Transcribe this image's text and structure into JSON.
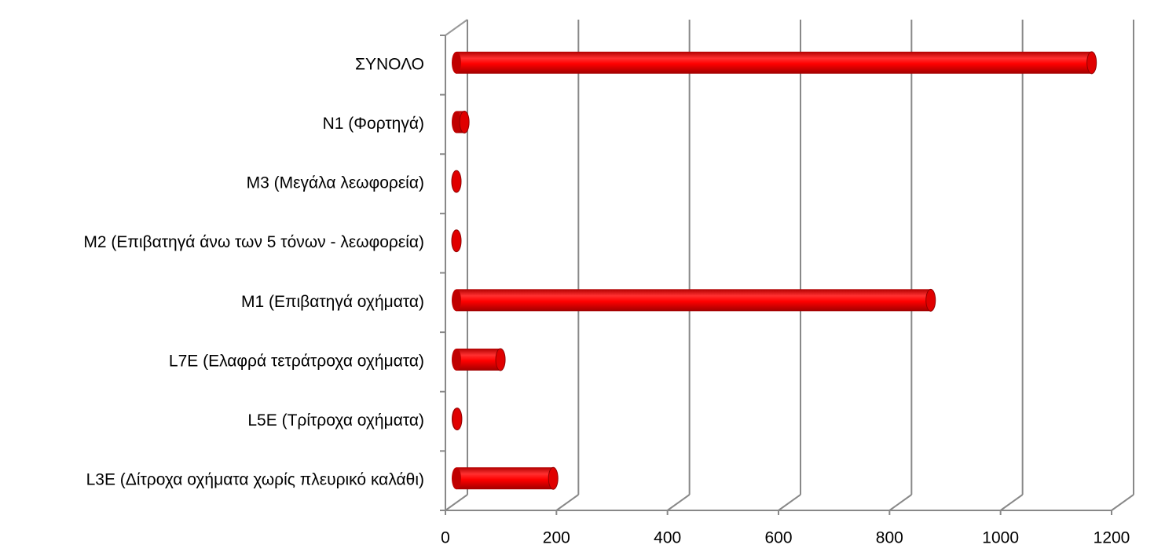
{
  "chart_data": {
    "type": "bar",
    "orientation": "horizontal",
    "categories": [
      "ΣΥΝΟΛΟ",
      "N1 (Φορτηγά)",
      "M3 (Μεγάλα λεωφορεία)",
      "M2 (Επιβατηγά άνω των 5 τόνων - λεωφορεία)",
      "M1 (Επιβατηγά οχήματα)",
      "L7E (Ελαφρά τετράτροχα οχήματα)",
      "L5E (Τρίτροχα οχήματα)",
      "L3E (Δίτροχα οχήματα χωρίς πλευρικό καλάθι)"
    ],
    "values": [
      1150,
      20,
      3,
      3,
      860,
      85,
      7,
      180
    ],
    "color": "#ff0000",
    "xlim": [
      0,
      1200
    ],
    "xticks": [
      0,
      200,
      400,
      600,
      800,
      1000,
      1200
    ],
    "grid": true
  }
}
